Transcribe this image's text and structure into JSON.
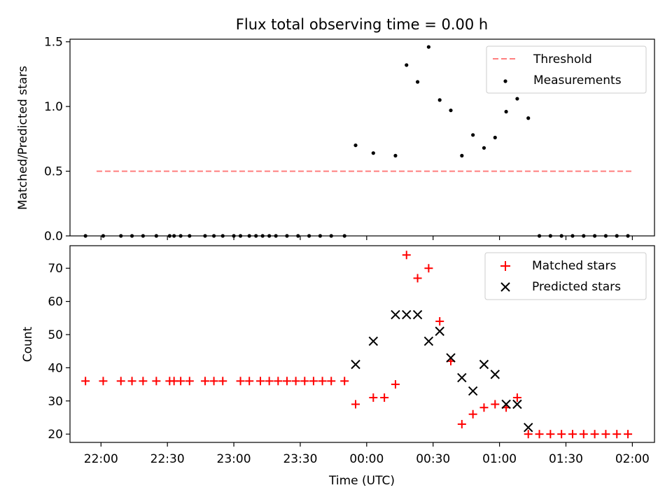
{
  "figure": {
    "title": "Flux total observing time = 0.00 h"
  },
  "chart_data": [
    {
      "type": "scatter",
      "ylabel": "Matched/Predicted stars",
      "xlabel": "",
      "xlim": [
        "21:46",
        "02:10"
      ],
      "ylim": [
        0,
        1.52
      ],
      "yticks": [
        "0.0",
        "0.5",
        "1.0",
        "1.5"
      ],
      "xticks": [
        "22:00",
        "22:30",
        "23:00",
        "23:30",
        "00:00",
        "00:30",
        "01:00",
        "01:30",
        "02:00"
      ],
      "show_xtick_labels": false,
      "grid": false,
      "legend_position": "top-right",
      "threshold": {
        "name": "Threshold",
        "y": 0.5,
        "x_start": "21:58",
        "x_end": "02:00",
        "color": "#ff7f7f",
        "style": "dashed"
      },
      "series": [
        {
          "name": "Measurements",
          "marker": "dot",
          "color": "#000000",
          "points": [
            [
              "21:53",
              0.0
            ],
            [
              "22:01",
              0.0
            ],
            [
              "22:09",
              0.0
            ],
            [
              "22:14",
              0.0
            ],
            [
              "22:19",
              0.0
            ],
            [
              "22:25",
              0.0
            ],
            [
              "22:31",
              0.0
            ],
            [
              "22:33",
              0.0
            ],
            [
              "22:36",
              0.0
            ],
            [
              "22:40",
              0.0
            ],
            [
              "22:47",
              0.0
            ],
            [
              "22:51",
              0.0
            ],
            [
              "22:55",
              0.0
            ],
            [
              "23:00",
              0.0
            ],
            [
              "23:03",
              0.0
            ],
            [
              "23:07",
              0.0
            ],
            [
              "23:10",
              0.0
            ],
            [
              "23:13",
              0.0
            ],
            [
              "23:16",
              0.0
            ],
            [
              "23:19",
              0.0
            ],
            [
              "23:24",
              0.0
            ],
            [
              "23:29",
              0.0
            ],
            [
              "23:34",
              0.0
            ],
            [
              "23:39",
              0.0
            ],
            [
              "23:44",
              0.0
            ],
            [
              "23:50",
              0.0
            ],
            [
              "23:55",
              0.7
            ],
            [
              "00:03",
              0.64
            ],
            [
              "00:13",
              0.62
            ],
            [
              "00:18",
              1.32
            ],
            [
              "00:23",
              1.19
            ],
            [
              "00:28",
              1.46
            ],
            [
              "00:33",
              1.05
            ],
            [
              "00:38",
              0.97
            ],
            [
              "00:43",
              0.62
            ],
            [
              "00:48",
              0.78
            ],
            [
              "00:53",
              0.68
            ],
            [
              "00:58",
              0.76
            ],
            [
              "01:03",
              0.96
            ],
            [
              "01:08",
              1.06
            ],
            [
              "01:13",
              0.91
            ],
            [
              "01:18",
              0.0
            ],
            [
              "01:23",
              0.0
            ],
            [
              "01:28",
              0.0
            ],
            [
              "01:33",
              0.0
            ],
            [
              "01:38",
              0.0
            ],
            [
              "01:43",
              0.0
            ],
            [
              "01:48",
              0.0
            ],
            [
              "01:53",
              0.0
            ],
            [
              "01:58",
              0.0
            ]
          ]
        }
      ],
      "legend": [
        {
          "label": "Threshold",
          "kind": "dashed-line",
          "color": "#ff7f7f"
        },
        {
          "label": "Measurements",
          "kind": "dot",
          "color": "#000000"
        }
      ]
    },
    {
      "type": "scatter",
      "ylabel": "Count",
      "xlabel": "Time (UTC)",
      "xlim": [
        "21:46",
        "02:10"
      ],
      "ylim": [
        17.5,
        76.8
      ],
      "yticks": [
        "20",
        "30",
        "40",
        "50",
        "60",
        "70"
      ],
      "xticks": [
        "22:00",
        "22:30",
        "23:00",
        "23:30",
        "00:00",
        "00:30",
        "01:00",
        "01:30",
        "02:00"
      ],
      "grid": false,
      "legend_position": "top-right",
      "series": [
        {
          "name": "Matched stars",
          "marker": "plus",
          "color": "#ff0000",
          "points": [
            [
              "21:53",
              36
            ],
            [
              "22:01",
              36
            ],
            [
              "22:09",
              36
            ],
            [
              "22:14",
              36
            ],
            [
              "22:19",
              36
            ],
            [
              "22:25",
              36
            ],
            [
              "22:31",
              36
            ],
            [
              "22:33",
              36
            ],
            [
              "22:36",
              36
            ],
            [
              "22:40",
              36
            ],
            [
              "22:47",
              36
            ],
            [
              "22:51",
              36
            ],
            [
              "22:55",
              36
            ],
            [
              "23:03",
              36
            ],
            [
              "23:07",
              36
            ],
            [
              "23:12",
              36
            ],
            [
              "23:16",
              36
            ],
            [
              "23:20",
              36
            ],
            [
              "23:24",
              36
            ],
            [
              "23:28",
              36
            ],
            [
              "23:32",
              36
            ],
            [
              "23:36",
              36
            ],
            [
              "23:40",
              36
            ],
            [
              "23:44",
              36
            ],
            [
              "23:50",
              36
            ],
            [
              "23:55",
              29
            ],
            [
              "00:03",
              31
            ],
            [
              "00:08",
              31
            ],
            [
              "00:13",
              35
            ],
            [
              "00:18",
              74
            ],
            [
              "00:23",
              67
            ],
            [
              "00:28",
              70
            ],
            [
              "00:33",
              54
            ],
            [
              "00:38",
              42
            ],
            [
              "00:43",
              23
            ],
            [
              "00:48",
              26
            ],
            [
              "00:53",
              28
            ],
            [
              "00:58",
              29
            ],
            [
              "01:03",
              28
            ],
            [
              "01:08",
              31
            ],
            [
              "01:13",
              20
            ],
            [
              "01:18",
              20
            ],
            [
              "01:23",
              20
            ],
            [
              "01:28",
              20
            ],
            [
              "01:33",
              20
            ],
            [
              "01:38",
              20
            ],
            [
              "01:43",
              20
            ],
            [
              "01:48",
              20
            ],
            [
              "01:53",
              20
            ],
            [
              "01:58",
              20
            ]
          ]
        },
        {
          "name": "Predicted stars",
          "marker": "x",
          "color": "#000000",
          "points": [
            [
              "23:55",
              41
            ],
            [
              "00:03",
              48
            ],
            [
              "00:13",
              56
            ],
            [
              "00:18",
              56
            ],
            [
              "00:23",
              56
            ],
            [
              "00:28",
              48
            ],
            [
              "00:33",
              51
            ],
            [
              "00:38",
              43
            ],
            [
              "00:43",
              37
            ],
            [
              "00:48",
              33
            ],
            [
              "00:53",
              41
            ],
            [
              "00:58",
              38
            ],
            [
              "01:03",
              29
            ],
            [
              "01:08",
              29
            ],
            [
              "01:13",
              22
            ]
          ]
        }
      ],
      "legend": [
        {
          "label": "Matched stars",
          "kind": "plus",
          "color": "#ff0000"
        },
        {
          "label": "Predicted stars",
          "kind": "x",
          "color": "#000000"
        }
      ]
    }
  ]
}
